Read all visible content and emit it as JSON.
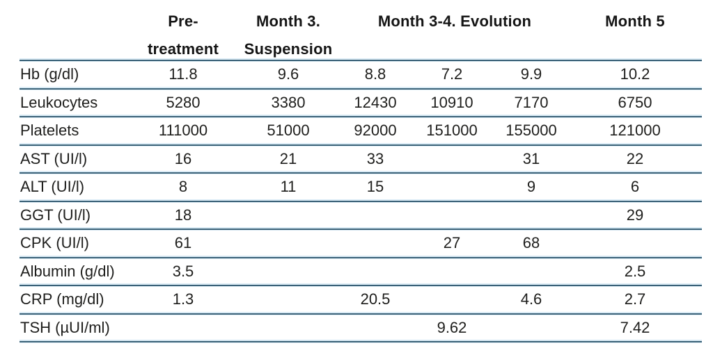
{
  "table": {
    "header": {
      "pretreatment_line1": "Pre-",
      "pretreatment_line2": "treatment",
      "month3_line1": "Month 3.",
      "month3_line2": "Suspension",
      "evolution": "Month 3-4. Evolution",
      "month5": "Month 5"
    },
    "rows": [
      {
        "label": "Hb (g/dl)",
        "values": [
          "11.8",
          "9.6",
          "8.8",
          "7.2",
          "9.9",
          "10.2"
        ]
      },
      {
        "label": "Leukocytes",
        "values": [
          "5280",
          "3380",
          "12430",
          "10910",
          "7170",
          "6750"
        ]
      },
      {
        "label": "Platelets",
        "values": [
          "111000",
          "51000",
          "92000",
          "151000",
          "155000",
          "121000"
        ]
      },
      {
        "label": "AST (UI/l)",
        "values": [
          "16",
          "21",
          "33",
          "",
          "31",
          "22"
        ]
      },
      {
        "label": "ALT (UI/l)",
        "values": [
          "8",
          "11",
          "15",
          "",
          "9",
          "6"
        ]
      },
      {
        "label": "GGT (UI/l)",
        "values": [
          "18",
          "",
          "",
          "",
          "",
          "29"
        ]
      },
      {
        "label": "CPK (UI/l)",
        "values": [
          "61",
          "",
          "",
          "27",
          "68",
          ""
        ]
      },
      {
        "label": "Albumin (g/dl)",
        "values": [
          "3.5",
          "",
          "",
          "",
          "",
          "2.5"
        ]
      },
      {
        "label": "CRP (mg/dl)",
        "values": [
          "1.3",
          "",
          "20.5",
          "",
          "4.6",
          "2.7"
        ]
      },
      {
        "label": "TSH (µUI/ml)",
        "values": [
          "",
          "",
          "",
          "9.62",
          "",
          "7.42"
        ]
      }
    ],
    "colors": {
      "rule_dark": "#3a6177",
      "rule_halo": "#daebf5",
      "text": "#1e1e1c",
      "header_text": "#151515"
    }
  }
}
